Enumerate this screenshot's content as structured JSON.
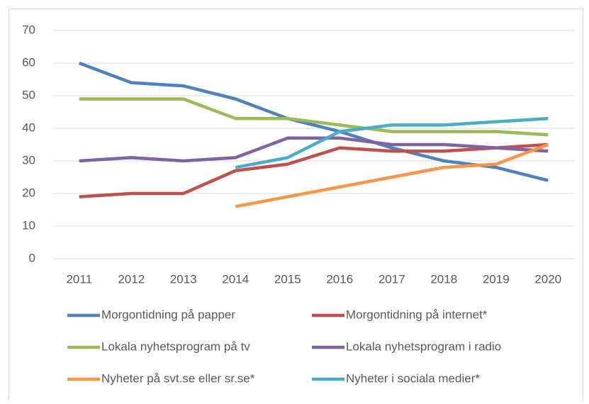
{
  "chart_data": {
    "type": "line",
    "categories": [
      "2011",
      "2012",
      "2013",
      "2014",
      "2015",
      "2016",
      "2017",
      "2018",
      "2019",
      "2020"
    ],
    "series": [
      {
        "name": "Morgontidning på papper",
        "color": "#4f81bd",
        "values": [
          60,
          54,
          53,
          49,
          43,
          39,
          34,
          30,
          28,
          24
        ]
      },
      {
        "name": "Morgontidning på internet*",
        "color": "#c0504d",
        "values": [
          19,
          20,
          20,
          27,
          29,
          34,
          33,
          33,
          34,
          35
        ]
      },
      {
        "name": "Lokala nyhetsprogram på tv",
        "color": "#9bbb59",
        "values": [
          49,
          49,
          49,
          43,
          43,
          41,
          39,
          39,
          39,
          38
        ]
      },
      {
        "name": "Lokala nyhetsprogram i radio",
        "color": "#8064a2",
        "values": [
          30,
          31,
          30,
          31,
          37,
          37,
          35,
          35,
          34,
          33
        ]
      },
      {
        "name": "Nyheter på svt.se eller sr.se*",
        "color": "#f79646",
        "values": [
          null,
          null,
          null,
          16,
          19,
          22,
          25,
          28,
          29,
          35
        ]
      },
      {
        "name": "Nyheter i sociala medier*",
        "color": "#4bacc6",
        "values": [
          null,
          null,
          null,
          28,
          31,
          39,
          41,
          41,
          42,
          43
        ]
      }
    ],
    "ylim": [
      0,
      70
    ],
    "yticks": [
      0,
      10,
      20,
      30,
      40,
      50,
      60,
      70
    ],
    "grid": true,
    "legend": "bottom"
  }
}
